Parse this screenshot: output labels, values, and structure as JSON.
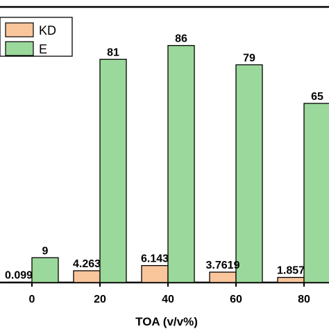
{
  "chart_data": {
    "type": "bar",
    "xlabel": "TOA (v/v%)",
    "categories": [
      "0",
      "20",
      "40",
      "60",
      "80"
    ],
    "series": [
      {
        "name": "KD",
        "color": "#f9c59b",
        "values": [
          0.099,
          4.263,
          6.143,
          3.7619,
          1.857
        ],
        "labels": [
          "0.099",
          "4.263",
          "6.143",
          "3.7619",
          "1.857"
        ]
      },
      {
        "name": "E",
        "color": "#9bd89b",
        "values": [
          9,
          81,
          86,
          79,
          65
        ],
        "labels": [
          "9",
          "81",
          "86",
          "79",
          "65"
        ]
      }
    ],
    "ylim": [
      0,
      100
    ],
    "legend_position": "top-left",
    "grid": false
  }
}
